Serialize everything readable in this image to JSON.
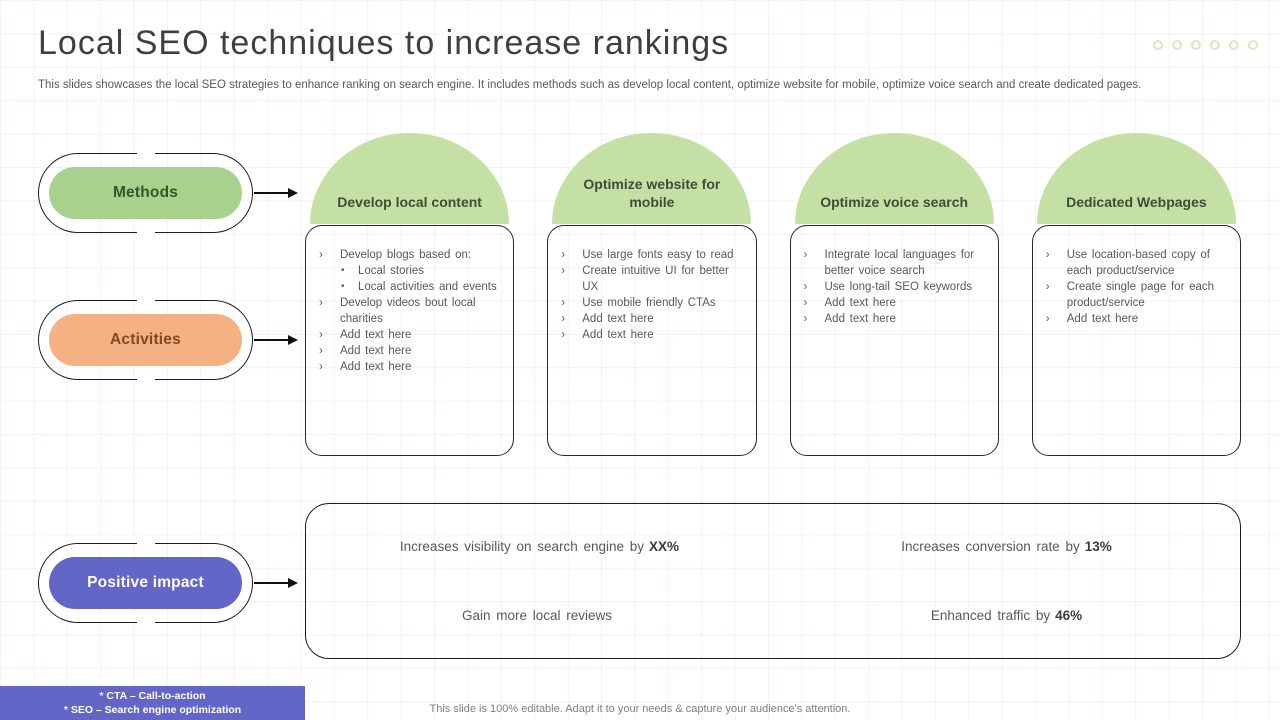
{
  "header": {
    "title": "Local SEO techniques to increase rankings",
    "subtitle": "This slides showcases the local SEO strategies to enhance ranking on search engine. It includes methods such as develop local content, optimize website for mobile, optimize voice search and create dedicated pages."
  },
  "decor": {
    "dot_count": 6
  },
  "pills": [
    {
      "label": "Methods",
      "fill": "#a9d18e",
      "text_color": "#375623"
    },
    {
      "label": "Activities",
      "fill": "#f4b183",
      "text_color": "#7e4a21"
    },
    {
      "label": "Positive impact",
      "fill": "#6365c7",
      "text_color": "#ffffff"
    }
  ],
  "columns": [
    {
      "header": "Develop local content",
      "items": [
        {
          "bullet": "chevron",
          "text": "Develop blogs based on:"
        },
        {
          "bullet": "dot",
          "text": "Local stories"
        },
        {
          "bullet": "dot",
          "text": "Local activities and events"
        },
        {
          "bullet": "chevron",
          "text": "Develop videos bout local charities"
        },
        {
          "bullet": "chevron",
          "text": "Add text here"
        },
        {
          "bullet": "chevron",
          "text": "Add text here"
        },
        {
          "bullet": "chevron",
          "text": "Add text here"
        }
      ]
    },
    {
      "header": "Optimize website for mobile",
      "items": [
        {
          "bullet": "chevron",
          "text": "Use large fonts easy to read"
        },
        {
          "bullet": "chevron",
          "text": "Create intuitive UI for better UX"
        },
        {
          "bullet": "chevron",
          "text": "Use mobile friendly CTAs"
        },
        {
          "bullet": "chevron",
          "text": "Add text here"
        },
        {
          "bullet": "chevron",
          "text": "Add text here"
        }
      ]
    },
    {
      "header": "Optimize voice search",
      "items": [
        {
          "bullet": "chevron",
          "text": "Integrate local languages for better voice search"
        },
        {
          "bullet": "chevron",
          "text": "Use long-tail SEO keywords"
        },
        {
          "bullet": "chevron",
          "text": "Add text here"
        },
        {
          "bullet": "chevron",
          "text": "Add text here"
        }
      ]
    },
    {
      "header": "Dedicated Webpages",
      "items": [
        {
          "bullet": "chevron",
          "text": "Use location-based copy of each product/service"
        },
        {
          "bullet": "chevron",
          "text": "Create single page for each product/service"
        },
        {
          "bullet": "chevron",
          "text": "Add text here"
        }
      ]
    }
  ],
  "impact": {
    "cells": [
      {
        "text": "Increases visibility on search engine by",
        "value": "XX%"
      },
      {
        "text": "Increases conversion rate by",
        "value": "13%"
      },
      {
        "text": "Gain more local reviews",
        "value": ""
      },
      {
        "text": "Enhanced traffic by",
        "value": "46%"
      }
    ]
  },
  "footer": {
    "abbrev_lines": [
      "* CTA – Call-to-action",
      "* SEO – Search engine optimization"
    ],
    "note_bg": "#6365c7",
    "editable_note": "This slide is 100% editable. Adapt it to your needs & capture your audience's attention."
  },
  "colors": {
    "dome_green": "#c5e0a4",
    "pill_green": "#a9d18e",
    "pill_peach": "#f4b183",
    "pill_purple": "#6365c7",
    "dots_green": "#d5e9bd",
    "outline_black": "#1c1c1c",
    "body_text": "#595959"
  }
}
